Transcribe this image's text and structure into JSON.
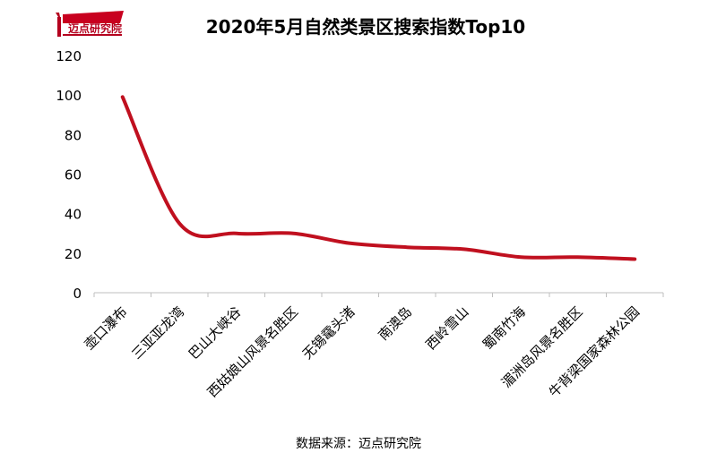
{
  "brand": {
    "logo_text": "迈点研究院"
  },
  "source_note": "数据来源：迈点研究院",
  "colors": {
    "line": "#c0101f",
    "axis": "#bfbfbf",
    "text": "#000000",
    "brand": "#b4001e"
  },
  "chart_data": {
    "type": "line",
    "title": "2020年5月自然类景区搜索指数Top10",
    "xlabel": "",
    "ylabel": "",
    "ylim": [
      0,
      120
    ],
    "yticks": [
      0,
      20,
      40,
      60,
      80,
      100,
      120
    ],
    "grid": false,
    "legend": "none",
    "categories": [
      "壶口瀑布",
      "三亚亚龙湾",
      "巴山大峡谷",
      "西姑娘山风景名胜区",
      "无锡鼋头渚",
      "南澳岛",
      "西岭雪山",
      "蜀南竹海",
      "湄洲岛风景名胜区",
      "牛背梁国家森林公园"
    ],
    "series": [
      {
        "values": [
          99,
          35,
          30,
          30,
          25,
          23,
          22,
          18,
          18,
          17
        ]
      }
    ]
  }
}
